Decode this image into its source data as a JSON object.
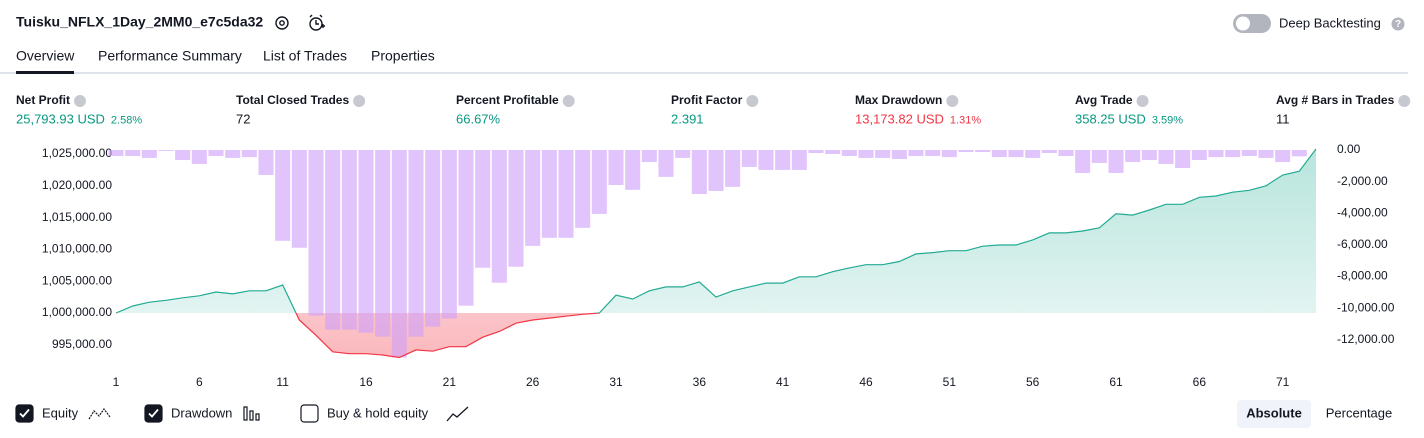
{
  "header": {
    "title": "Tuisku_NFLX_1Day_2MM0_e7c5da32",
    "toggle_label": "Deep Backtesting"
  },
  "tabs": [
    "Overview",
    "Performance Summary",
    "List of Trades",
    "Properties"
  ],
  "stats": [
    {
      "label": "Net Profit",
      "value": "25,793.93 USD",
      "percent": "2.58%",
      "color": "#089981"
    },
    {
      "label": "Total Closed Trades",
      "value": "72",
      "color": "#131722"
    },
    {
      "label": "Percent Profitable",
      "value": "66.67%",
      "color": "#089981"
    },
    {
      "label": "Profit Factor",
      "value": "2.391",
      "color": "#089981"
    },
    {
      "label": "Max Drawdown",
      "value": "13,173.82 USD",
      "percent": "1.31%",
      "color": "#f23645"
    },
    {
      "label": "Avg Trade",
      "value": "358.25 USD",
      "percent": "3.59%",
      "color": "#089981"
    },
    {
      "label": "Avg # Bars in Trades",
      "value": "11",
      "color": "#131722"
    }
  ],
  "chart_data": {
    "type": "combo",
    "x": [
      1,
      2,
      3,
      4,
      5,
      6,
      7,
      8,
      9,
      10,
      11,
      12,
      13,
      14,
      15,
      16,
      17,
      18,
      19,
      20,
      21,
      22,
      23,
      24,
      25,
      26,
      27,
      28,
      29,
      30,
      31,
      32,
      33,
      34,
      35,
      36,
      37,
      38,
      39,
      40,
      41,
      42,
      43,
      44,
      45,
      46,
      47,
      48,
      49,
      50,
      51,
      52,
      53,
      54,
      55,
      56,
      57,
      58,
      59,
      60,
      61,
      62,
      63,
      64,
      65,
      66,
      67,
      68,
      69,
      70,
      71,
      72,
      73
    ],
    "xlim": [
      1,
      73
    ],
    "xticks": [
      1,
      6,
      11,
      16,
      21,
      26,
      31,
      36,
      41,
      46,
      51,
      56,
      61,
      66,
      71
    ],
    "ylim": [
      992300,
      1025630
    ],
    "yticks": [
      {
        "value": 995000,
        "label": "995,000.00"
      },
      {
        "value": 1000000,
        "label": "1,000,000.00"
      },
      {
        "value": 1005000,
        "label": "1,005,000.00"
      },
      {
        "value": 1010000,
        "label": "1,010,000.00"
      },
      {
        "value": 1015000,
        "label": "1,015,000.00"
      },
      {
        "value": 1020000,
        "label": "1,020,000.00"
      },
      {
        "value": 1025000,
        "label": "1,025,000.00"
      }
    ],
    "y2lim": [
      -13400,
      0
    ],
    "y2ticks": [
      {
        "value": 0,
        "label": "0.00"
      },
      {
        "value": -2000,
        "label": "-2,000.00"
      },
      {
        "value": -4000,
        "label": "-4,000.00"
      },
      {
        "value": -6000,
        "label": "-6,000.00"
      },
      {
        "value": -8000,
        "label": "-8,000.00"
      },
      {
        "value": -10000,
        "label": "-10,000.00"
      },
      {
        "value": -12000,
        "label": "-12,000.00"
      }
    ],
    "series": [
      {
        "name": "Equity",
        "type": "line",
        "color": "#22ab94",
        "loss_color": "#f23645",
        "values": [
          1000000,
          1001100,
          1001700,
          1002000,
          1002400,
          1002700,
          1003300,
          1003000,
          1003500,
          1003500,
          1004400,
          998900,
          996500,
          993900,
          993600,
          993600,
          993400,
          993000,
          994200,
          994000,
          994700,
          994700,
          996200,
          997100,
          998400,
          998900,
          999200,
          999500,
          999800,
          1000000,
          1002800,
          1002200,
          1003500,
          1004100,
          1004100,
          1004900,
          1002500,
          1003500,
          1004100,
          1004700,
          1004700,
          1005700,
          1005700,
          1006500,
          1007100,
          1007600,
          1007600,
          1008100,
          1009300,
          1009500,
          1009800,
          1009800,
          1010500,
          1010700,
          1010700,
          1011500,
          1012600,
          1012600,
          1012900,
          1013400,
          1015600,
          1015400,
          1016200,
          1017100,
          1017100,
          1018200,
          1018400,
          1019000,
          1019300,
          1020000,
          1021700,
          1022300,
          1025794
        ]
      },
      {
        "name": "Drawdown",
        "type": "bar",
        "axis": "y2",
        "color": "#ce9ff8",
        "values": [
          -380,
          -380,
          -500,
          -60,
          -630,
          -880,
          -380,
          -500,
          -450,
          -1580,
          -5740,
          -6180,
          -10470,
          -11360,
          -11360,
          -11550,
          -11800,
          -13120,
          -11800,
          -11170,
          -10660,
          -9840,
          -7440,
          -8390,
          -7380,
          -6060,
          -5550,
          -5550,
          -4920,
          -4040,
          -2210,
          -2520,
          -760,
          -1700,
          -500,
          -2780,
          -2590,
          -2330,
          -1070,
          -1260,
          -1260,
          -1260,
          -190,
          -250,
          -380,
          -500,
          -500,
          -570,
          -380,
          -380,
          -450,
          -130,
          -130,
          -450,
          -450,
          -500,
          -190,
          -380,
          -1450,
          -820,
          -1450,
          -760,
          -630,
          -880,
          -1140,
          -630,
          -450,
          -450,
          -380,
          -500,
          -760,
          -400,
          0
        ]
      }
    ]
  },
  "toggles": [
    {
      "label": "Buy & hold equity",
      "checked": false
    }
  ],
  "modes": [
    "Absolute",
    "Percentage"
  ]
}
